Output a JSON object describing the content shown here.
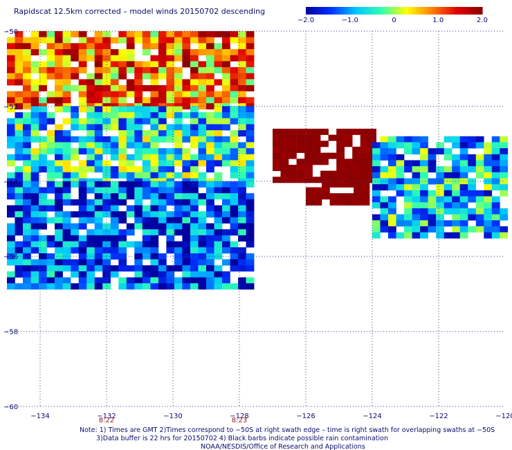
{
  "title": "Rapidscat 12.5km corrected – model winds 20150702 descending",
  "colorbar": {
    "tick_labels": [
      "−2.0",
      "−1.0",
      "0",
      "1.0",
      "2.0"
    ],
    "tick_values": [
      -2.0,
      -1.0,
      0,
      1.0,
      2.0
    ],
    "range": [
      -2.0,
      2.0
    ]
  },
  "axes": {
    "x_ticks": [
      -134,
      -132,
      -130,
      -128,
      -126,
      -124,
      -122,
      -120
    ],
    "x_tick_labels": [
      "−134",
      "−132",
      "−130",
      "−128",
      "−126",
      "−124",
      "−122",
      "−120"
    ],
    "y_ticks": [
      -50,
      -52,
      -54,
      -56,
      -58,
      -60
    ],
    "y_tick_labels": [
      "−50",
      "−52",
      "−54",
      "−56",
      "−58",
      "−60"
    ],
    "xlim": [
      -135,
      -120
    ],
    "ylim": [
      -60,
      -50
    ]
  },
  "time_labels": [
    {
      "text": "8:22",
      "lon": -132
    },
    {
      "text": "8:23",
      "lon": -128
    }
  ],
  "notes": [
    "Note: 1) Times are GMT 2)Times correspond to −50S at right swath edge – time is right swath for overlapping swaths at −50S",
    "3)Data buffer is 22 hrs for 20150702 4) Black barbs indicate possible rain contamination",
    "NOAA/NESDIS/Office of Research and Applications"
  ],
  "chart_data": {
    "type": "heatmap",
    "title": "Rapidscat 12.5km corrected – model winds 20150702 descending",
    "xlim": [
      -135,
      -120
    ],
    "ylim": [
      -60,
      -50
    ],
    "value_range": [
      -2.0,
      2.0
    ],
    "colorscale": [
      "#0000a0",
      "#0030ff",
      "#00c8ff",
      "#30ffb0",
      "#ffff00",
      "#ff8000",
      "#e00000",
      "#8b0000"
    ],
    "regions": [
      {
        "name": "west-swath-north",
        "lon": [
          -135.0,
          -127.6
        ],
        "lat": [
          -52.0,
          -50.0
        ],
        "value": 0.9
      },
      {
        "name": "west-swath-mid",
        "lon": [
          -135.0,
          -127.6
        ],
        "lat": [
          -54.0,
          -52.0
        ],
        "value": -0.6
      },
      {
        "name": "west-swath-south",
        "lon": [
          -135.0,
          -127.6
        ],
        "lat": [
          -56.8,
          -54.0
        ],
        "value": -1.4
      },
      {
        "name": "east-swath-core",
        "lon": [
          -127.0,
          -124.0
        ],
        "lat": [
          -54.0,
          -52.6
        ],
        "value": 2.0
      },
      {
        "name": "east-swath-band",
        "lon": [
          -126.0,
          -124.2
        ],
        "lat": [
          -54.6,
          -54.0
        ],
        "value": 2.0
      },
      {
        "name": "east-swath-east",
        "lon": [
          -124.0,
          -120.0
        ],
        "lat": [
          -55.4,
          -52.8
        ],
        "value": -0.8
      }
    ]
  }
}
